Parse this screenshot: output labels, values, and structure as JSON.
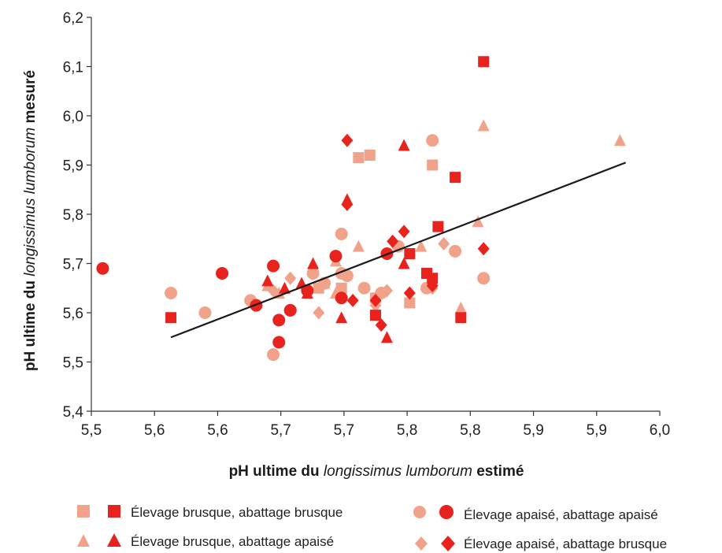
{
  "chart_data": {
    "type": "scatter",
    "title": "",
    "xlabel": {
      "prefix": "pH ultime du ",
      "italic": "longissimus lumborum",
      "suffix": " estimé"
    },
    "ylabel": {
      "prefix": "pH ultime du ",
      "italic": "longissimus lumborum",
      "suffix": " mesuré"
    },
    "x_tick_labels": [
      "5,5",
      "5,6",
      "5,6",
      "5,7",
      "5,7",
      "5,8",
      "5,8",
      "5,9",
      "5,9",
      "6,0"
    ],
    "y_tick_labels": [
      "5,4",
      "5,5",
      "5,6",
      "5,7",
      "5,8",
      "5,9",
      "6,0",
      "6,1",
      "6,2"
    ],
    "xlim": [
      5.5,
      6.0
    ],
    "ylim": [
      5.4,
      6.2
    ],
    "grid": false,
    "legend_position": "bottom",
    "colors": {
      "light": "#f0a28a",
      "dark": "#e8231e",
      "line": "#1a1a1a"
    },
    "regression_line": {
      "x": [
        5.57,
        5.97
      ],
      "y": [
        5.55,
        5.905
      ]
    },
    "series": [
      {
        "name": "Élevage brusque, abattage brusque",
        "marker": "square",
        "light_points": [
          [
            5.7,
            5.65
          ],
          [
            5.72,
            5.65
          ],
          [
            5.735,
            5.915
          ],
          [
            5.745,
            5.92
          ],
          [
            5.75,
            5.63
          ],
          [
            5.78,
            5.62
          ],
          [
            5.8,
            5.9
          ]
        ],
        "dark_points": [
          [
            5.57,
            5.59
          ],
          [
            5.75,
            5.595
          ],
          [
            5.78,
            5.72
          ],
          [
            5.795,
            5.68
          ],
          [
            5.8,
            5.67
          ],
          [
            5.805,
            5.775
          ],
          [
            5.82,
            5.875
          ],
          [
            5.825,
            5.59
          ],
          [
            5.845,
            6.11
          ]
        ]
      },
      {
        "name": "Élevage brusque, abattage apaisé",
        "marker": "triangle",
        "light_points": [
          [
            5.655,
            5.655
          ],
          [
            5.665,
            5.64
          ],
          [
            5.705,
            5.66
          ],
          [
            5.715,
            5.64
          ],
          [
            5.715,
            5.705
          ],
          [
            5.735,
            5.735
          ],
          [
            5.79,
            5.735
          ],
          [
            5.825,
            5.61
          ],
          [
            5.84,
            5.785
          ],
          [
            5.845,
            5.98
          ],
          [
            5.965,
            5.95
          ]
        ],
        "dark_points": [
          [
            5.655,
            5.665
          ],
          [
            5.67,
            5.65
          ],
          [
            5.685,
            5.66
          ],
          [
            5.695,
            5.7
          ],
          [
            5.69,
            5.64
          ],
          [
            5.72,
            5.59
          ],
          [
            5.725,
            5.83
          ],
          [
            5.76,
            5.55
          ],
          [
            5.775,
            5.94
          ],
          [
            5.775,
            5.7
          ]
        ]
      },
      {
        "name": "Élevage apaisé, abattage apaisé",
        "marker": "circle",
        "light_points": [
          [
            5.57,
            5.64
          ],
          [
            5.6,
            5.6
          ],
          [
            5.64,
            5.625
          ],
          [
            5.675,
            5.605
          ],
          [
            5.695,
            5.68
          ],
          [
            5.72,
            5.76
          ],
          [
            5.72,
            5.68
          ],
          [
            5.74,
            5.65
          ],
          [
            5.755,
            5.64
          ],
          [
            5.77,
            5.735
          ],
          [
            5.795,
            5.65
          ],
          [
            5.8,
            5.95
          ],
          [
            5.82,
            5.725
          ],
          [
            5.845,
            5.67
          ],
          [
            5.66,
            5.515
          ],
          [
            5.705,
            5.66
          ],
          [
            5.725,
            5.675
          ]
        ],
        "dark_points": [
          [
            5.51,
            5.69
          ],
          [
            5.615,
            5.68
          ],
          [
            5.645,
            5.615
          ],
          [
            5.66,
            5.695
          ],
          [
            5.665,
            5.585
          ],
          [
            5.665,
            5.54
          ],
          [
            5.675,
            5.605
          ],
          [
            5.69,
            5.645
          ],
          [
            5.715,
            5.715
          ],
          [
            5.72,
            5.63
          ],
          [
            5.76,
            5.72
          ]
        ]
      },
      {
        "name": "Élevage apaisé, abattage brusque",
        "marker": "diamond",
        "light_points": [
          [
            5.66,
            5.645
          ],
          [
            5.675,
            5.67
          ],
          [
            5.7,
            5.6
          ],
          [
            5.75,
            5.615
          ],
          [
            5.76,
            5.645
          ],
          [
            5.8,
            5.65
          ],
          [
            5.81,
            5.74
          ]
        ],
        "dark_points": [
          [
            5.725,
            5.95
          ],
          [
            5.725,
            5.82
          ],
          [
            5.73,
            5.625
          ],
          [
            5.75,
            5.625
          ],
          [
            5.755,
            5.575
          ],
          [
            5.765,
            5.745
          ],
          [
            5.775,
            5.765
          ],
          [
            5.78,
            5.64
          ],
          [
            5.8,
            5.655
          ],
          [
            5.845,
            5.73
          ]
        ]
      }
    ]
  }
}
